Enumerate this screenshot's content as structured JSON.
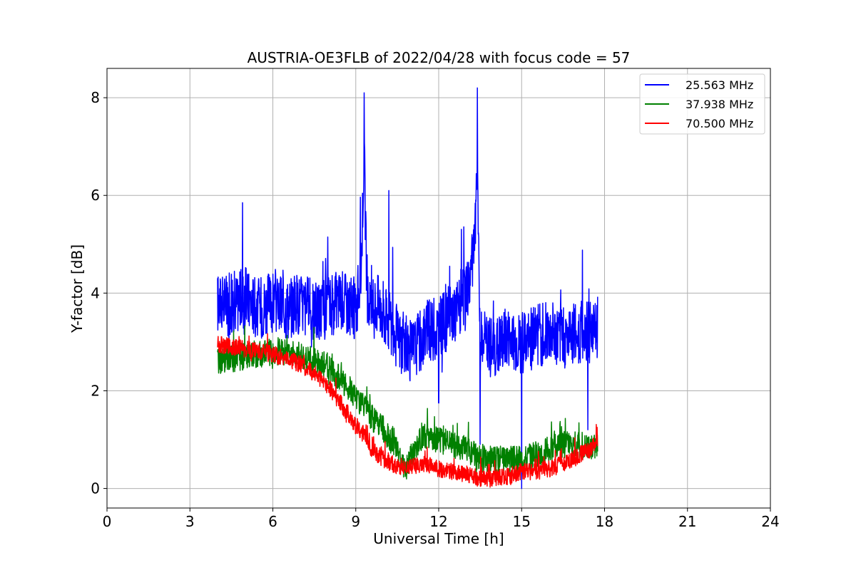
{
  "chart_data": {
    "type": "line",
    "title": "AUSTRIA-OE3FLB of 2022/04/28 with focus code = 57",
    "xlabel": "Universal Time [h]",
    "ylabel": "Y-factor [dB]",
    "xlim": [
      0,
      24
    ],
    "ylim": [
      -0.4,
      8.6
    ],
    "xticks": [
      0,
      3,
      6,
      9,
      12,
      15,
      18,
      21,
      24
    ],
    "yticks": [
      0,
      2,
      4,
      6,
      8
    ],
    "grid": true,
    "legend_position": "top-right",
    "series": [
      {
        "name": "25.563 MHz",
        "color": "#0000ff",
        "x": [
          4.0,
          4.5,
          5.0,
          5.5,
          6.0,
          6.5,
          7.0,
          7.5,
          8.0,
          8.5,
          9.0,
          9.2,
          9.3,
          9.4,
          9.5,
          9.8,
          10.0,
          10.5,
          11.0,
          11.5,
          12.0,
          12.5,
          13.0,
          13.3,
          13.4,
          13.5,
          14.0,
          14.5,
          15.0,
          15.5,
          16.0,
          16.5,
          17.0,
          17.5,
          17.75
        ],
        "values": [
          3.8,
          3.8,
          3.9,
          3.7,
          3.8,
          3.7,
          3.8,
          3.6,
          3.7,
          3.9,
          3.6,
          4.5,
          7.0,
          4.0,
          3.6,
          3.8,
          3.6,
          3.1,
          2.8,
          3.2,
          3.3,
          3.6,
          3.9,
          5.0,
          6.5,
          3.0,
          2.9,
          3.1,
          3.0,
          3.1,
          3.2,
          3.1,
          3.2,
          3.2,
          3.3
        ],
        "spikes": [
          {
            "x": 4.9,
            "y": 5.85
          },
          {
            "x": 9.3,
            "y": 8.1
          },
          {
            "x": 10.2,
            "y": 6.1
          },
          {
            "x": 13.4,
            "y": 8.2
          },
          {
            "x": 12.0,
            "y": 1.75
          },
          {
            "x": 13.5,
            "y": 0.9
          },
          {
            "x": 15.0,
            "y": 0.0
          },
          {
            "x": 17.4,
            "y": 1.2
          }
        ]
      },
      {
        "name": "37.938 MHz",
        "color": "#008000",
        "x": [
          4.0,
          5.0,
          6.0,
          7.0,
          7.5,
          8.0,
          8.5,
          9.0,
          9.5,
          10.0,
          10.5,
          10.8,
          11.0,
          11.5,
          12.0,
          12.5,
          13.0,
          13.5,
          14.0,
          14.5,
          15.0,
          15.5,
          16.0,
          16.5,
          17.0,
          17.5,
          17.75
        ],
        "values": [
          2.6,
          2.7,
          2.8,
          2.75,
          2.6,
          2.5,
          2.2,
          1.9,
          1.5,
          1.2,
          0.8,
          0.4,
          0.7,
          1.1,
          1.0,
          0.9,
          0.8,
          0.6,
          0.6,
          0.6,
          0.6,
          0.7,
          0.8,
          0.9,
          0.9,
          0.8,
          0.9
        ]
      },
      {
        "name": "70.500 MHz",
        "color": "#ff0000",
        "x": [
          4.0,
          5.0,
          6.0,
          6.5,
          7.0,
          7.5,
          8.0,
          8.5,
          9.0,
          9.3,
          9.5,
          10.0,
          10.5,
          11.0,
          11.5,
          12.0,
          12.5,
          13.0,
          13.5,
          14.0,
          14.5,
          15.0,
          15.5,
          16.0,
          16.5,
          17.0,
          17.5,
          17.75
        ],
        "values": [
          2.95,
          2.85,
          2.75,
          2.65,
          2.55,
          2.35,
          2.1,
          1.7,
          1.3,
          1.1,
          0.85,
          0.6,
          0.45,
          0.45,
          0.5,
          0.4,
          0.35,
          0.3,
          0.2,
          0.2,
          0.25,
          0.35,
          0.35,
          0.4,
          0.5,
          0.65,
          0.8,
          0.95
        ]
      }
    ]
  }
}
